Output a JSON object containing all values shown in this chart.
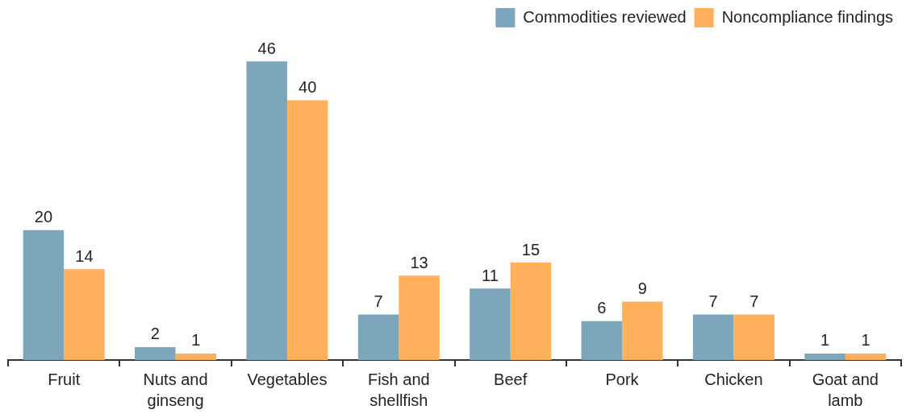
{
  "chart_data": {
    "type": "bar",
    "categories": [
      "Fruit",
      "Nuts and ginseng",
      "Vegetables",
      "Fish and shellfish",
      "Beef",
      "Pork",
      "Chicken",
      "Goat and lamb"
    ],
    "series": [
      {
        "name": "Commodities reviewed",
        "color": "#7ba6bb",
        "values": [
          20,
          2,
          46,
          7,
          11,
          6,
          7,
          1
        ]
      },
      {
        "name": "Noncompliance findings",
        "color": "#ffb05b",
        "values": [
          14,
          1,
          40,
          13,
          15,
          9,
          7,
          1
        ]
      }
    ],
    "data_labels": true,
    "legend": "top right",
    "grid": false
  }
}
